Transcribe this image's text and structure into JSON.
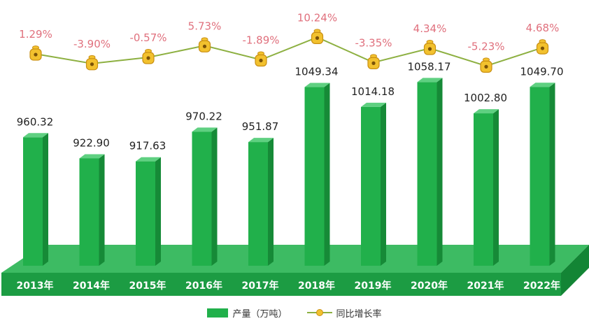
{
  "chart_data": {
    "type": "bar",
    "categories": [
      "2013年",
      "2014年",
      "2015年",
      "2016年",
      "2017年",
      "2018年",
      "2019年",
      "2020年",
      "2021年",
      "2022年"
    ],
    "series": [
      {
        "name": "产量（万吨）",
        "type": "bar",
        "values": [
          960.32,
          922.9,
          917.63,
          970.22,
          951.87,
          1049.34,
          1014.18,
          1058.17,
          1002.8,
          1049.7
        ],
        "labels": [
          "960.32",
          "922.90",
          "917.63",
          "970.22",
          "951.87",
          "1049.34",
          "1014.18",
          "1058.17",
          "1002.80",
          "1049.70"
        ]
      },
      {
        "name": "同比增长率",
        "type": "line",
        "values": [
          1.29,
          -3.9,
          -0.57,
          5.73,
          -1.89,
          10.24,
          -3.35,
          4.34,
          -5.23,
          4.68
        ],
        "labels": [
          "1.29%",
          "-3.90%",
          "-0.57%",
          "5.73%",
          "-1.89%",
          "10.24%",
          "-3.35%",
          "4.34%",
          "-5.23%",
          "4.68%"
        ]
      }
    ],
    "legend_position": "bottom",
    "grid": false,
    "colors": {
      "bar": "#21b04b",
      "bar_side": "#168a37",
      "bar_top": "#5fd081",
      "floor_top": "#3dbb63",
      "floor_front": "#1c9c43",
      "floor_side": "#138535",
      "line": "#8db041",
      "marker": "#f2c12e",
      "marker_border": "#c98f12",
      "rate_label": "#e0707d",
      "value_label": "#222222",
      "category_label": "#ffffff"
    }
  }
}
